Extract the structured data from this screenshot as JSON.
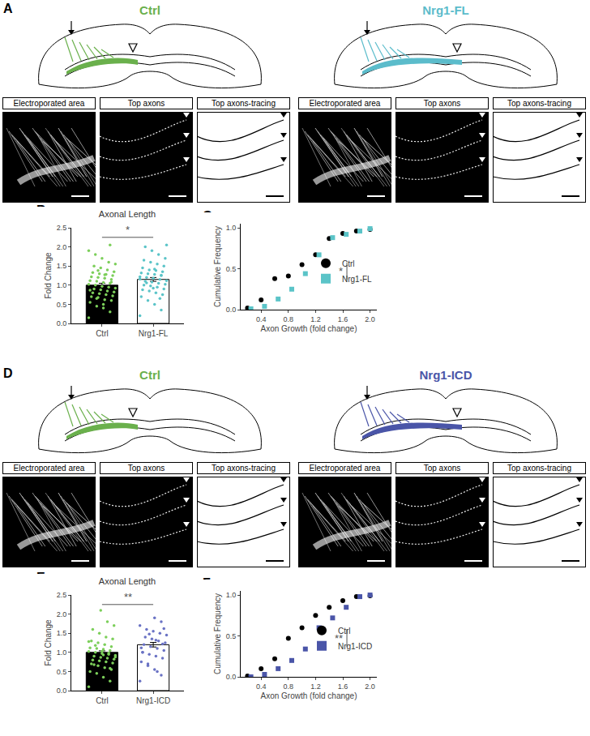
{
  "figure_panels": [
    {
      "panel": "A",
      "conditions": [
        {
          "title": "Ctrl",
          "color": "#6ab04c",
          "images": [
            "Electroporated area",
            "Top axons",
            "Top axons-tracing"
          ]
        },
        {
          "title": "Nrg1-FL",
          "color": "#5bbccb",
          "images": [
            "Electroporated area",
            "Top axons",
            "Top axons-tracing"
          ]
        }
      ]
    },
    {
      "panel": "D",
      "conditions": [
        {
          "title": "Ctrl",
          "color": "#6ab04c",
          "images": [
            "Electroporated area",
            "Top axons",
            "Top axons-tracing"
          ]
        },
        {
          "title": "Nrg1-ICD",
          "color": "#4a55a8",
          "images": [
            "Electroporated area",
            "Top axons",
            "Top axons-tracing"
          ]
        }
      ]
    }
  ],
  "chart_data": [
    {
      "panel": "B",
      "type": "bar",
      "title": "Axonal Length",
      "y_label": "Fold Change",
      "categories": [
        "Ctrl",
        "Nrg1-FL"
      ],
      "values": [
        1.0,
        1.15
      ],
      "errors": [
        0.05,
        0.05
      ],
      "colors": [
        "#000000",
        "#ffffff"
      ],
      "points": [
        {
          "category": "Ctrl",
          "color": "#7ccf5a",
          "values": [
            0.15,
            0.3,
            0.4,
            0.45,
            0.55,
            0.6,
            0.62,
            0.68,
            0.7,
            0.72,
            0.75,
            0.78,
            0.8,
            0.82,
            0.85,
            0.88,
            0.9,
            0.92,
            0.95,
            0.97,
            1.0,
            1.02,
            1.05,
            1.07,
            1.1,
            1.12,
            1.15,
            1.18,
            1.2,
            1.22,
            1.25,
            1.28,
            1.3,
            1.33,
            1.35,
            1.4,
            1.45,
            1.5,
            1.55,
            1.6,
            1.7,
            1.8,
            1.9,
            2.05,
            0.5,
            0.65,
            0.87,
            1.08,
            1.27,
            1.38
          ]
        },
        {
          "category": "Nrg1-FL",
          "color": "#5bc4c8",
          "values": [
            0.2,
            0.35,
            0.5,
            0.6,
            0.7,
            0.75,
            0.8,
            0.85,
            0.88,
            0.9,
            0.95,
            0.98,
            1.0,
            1.02,
            1.05,
            1.08,
            1.1,
            1.12,
            1.15,
            1.18,
            1.2,
            1.22,
            1.25,
            1.28,
            1.3,
            1.32,
            1.35,
            1.38,
            1.4,
            1.45,
            1.5,
            1.55,
            1.6,
            1.65,
            1.7,
            1.8,
            1.9,
            2.0,
            2.05,
            0.65,
            0.92,
            1.06,
            1.16,
            1.26,
            1.42
          ]
        }
      ],
      "annotations": [
        {
          "text": "*",
          "from": 0,
          "to": 1,
          "y": 2.25
        }
      ],
      "ylim": [
        0,
        2.5
      ],
      "yticks": [
        {
          "value": 0,
          "label": "0.0"
        },
        0.5,
        {
          "value": 1,
          "label": "1.0"
        },
        1.5,
        {
          "value": 2,
          "label": "2.0"
        },
        2.5
      ]
    },
    {
      "panel": "C",
      "type": "scatter",
      "y_label": "Cumulative Frequency",
      "x_label": "Axon Growth (fold change)",
      "series": [
        {
          "name": "Ctrl",
          "color": "#000000",
          "marker": "circle",
          "x": [
            0.2,
            0.4,
            0.6,
            0.8,
            1.0,
            1.2,
            1.4,
            1.6,
            1.8,
            2.0
          ],
          "values": [
            0.02,
            0.12,
            0.38,
            0.41,
            0.55,
            0.67,
            0.87,
            0.93,
            0.96,
            0.98
          ]
        },
        {
          "name": "Nrg1-FL",
          "color": "#5bc4c8",
          "marker": "square",
          "x": [
            0.25,
            0.45,
            0.65,
            0.85,
            1.05,
            1.25,
            1.45,
            1.65,
            1.85,
            2.0
          ],
          "values": [
            0.01,
            0.04,
            0.13,
            0.25,
            0.44,
            0.67,
            0.88,
            0.92,
            0.96,
            0.99
          ]
        }
      ],
      "annotations": [
        {
          "text": "*"
        }
      ],
      "legend": "right",
      "xlim": [
        0.1,
        2.1
      ],
      "xticks": [
        0.4,
        0.8,
        1.2,
        1.6,
        {
          "value": 2,
          "label": "2.0"
        }
      ],
      "ylim": [
        0,
        1.05
      ],
      "yticks": [
        {
          "value": 0,
          "label": "0.0"
        },
        0.5,
        {
          "value": 1,
          "label": "1.0"
        }
      ]
    },
    {
      "panel": "E",
      "type": "bar",
      "title": "Axonal Length",
      "y_label": "Fold Change",
      "categories": [
        "Ctrl",
        "Nrg1-ICD"
      ],
      "values": [
        1.0,
        1.2
      ],
      "errors": [
        0.04,
        0.06
      ],
      "colors": [
        "#000000",
        "#ffffff"
      ],
      "points": [
        {
          "category": "Ctrl",
          "color": "#7ccf5a",
          "values": [
            0.1,
            0.25,
            0.35,
            0.45,
            0.5,
            0.55,
            0.6,
            0.65,
            0.7,
            0.72,
            0.75,
            0.78,
            0.8,
            0.82,
            0.85,
            0.87,
            0.9,
            0.92,
            0.95,
            0.97,
            1.0,
            1.02,
            1.05,
            1.08,
            1.1,
            1.12,
            1.15,
            1.2,
            1.25,
            1.3,
            1.35,
            1.4,
            1.5,
            1.6,
            1.7,
            1.8,
            2.1,
            0.68,
            0.88,
            0.98,
            1.03,
            1.18,
            1.28,
            0.58,
            0.93
          ]
        },
        {
          "category": "Nrg1-ICD",
          "color": "#6a72c4",
          "values": [
            0.25,
            0.4,
            0.55,
            0.65,
            0.75,
            0.85,
            0.9,
            0.95,
            1.0,
            1.05,
            1.1,
            1.15,
            1.2,
            1.25,
            1.3,
            1.35,
            1.4,
            1.45,
            1.5,
            1.55,
            1.6,
            1.7,
            1.8,
            1.9,
            0.7,
            1.12,
            1.22,
            1.32,
            1.48,
            1.0,
            1.62,
            0.5
          ]
        }
      ],
      "annotations": [
        {
          "text": "**",
          "from": 0,
          "to": 1,
          "y": 2.25
        }
      ],
      "ylim": [
        0,
        2.5
      ],
      "yticks": [
        {
          "value": 0,
          "label": "0.0"
        },
        0.5,
        {
          "value": 1,
          "label": "1.0"
        },
        1.5,
        {
          "value": 2,
          "label": "2.0"
        },
        2.5
      ]
    },
    {
      "panel": "F",
      "type": "scatter",
      "y_label": "Cumulative Frequency",
      "x_label": "Axon Growth (fold change)",
      "series": [
        {
          "name": "Ctrl",
          "color": "#000000",
          "marker": "circle",
          "x": [
            0.2,
            0.4,
            0.6,
            0.8,
            1.0,
            1.2,
            1.4,
            1.6,
            1.8,
            2.0
          ],
          "values": [
            0.01,
            0.1,
            0.22,
            0.47,
            0.6,
            0.75,
            0.85,
            0.93,
            0.98,
            0.99
          ]
        },
        {
          "name": "Nrg1-ICD",
          "color": "#4a55a8",
          "marker": "square",
          "x": [
            0.25,
            0.45,
            0.65,
            0.85,
            1.05,
            1.25,
            1.45,
            1.65,
            1.85,
            2.0
          ],
          "values": [
            0.0,
            0.03,
            0.1,
            0.2,
            0.34,
            0.6,
            0.72,
            0.85,
            0.98,
            1.0
          ]
        }
      ],
      "annotations": [
        {
          "text": "**"
        }
      ],
      "legend": "right",
      "xlim": [
        0.1,
        2.1
      ],
      "xticks": [
        0.4,
        0.8,
        1.2,
        1.6,
        {
          "value": 2,
          "label": "2.0"
        }
      ],
      "ylim": [
        0,
        1.05
      ],
      "yticks": [
        {
          "value": 0,
          "label": "0.0"
        },
        0.5,
        {
          "value": 1,
          "label": "1.0"
        }
      ]
    }
  ]
}
